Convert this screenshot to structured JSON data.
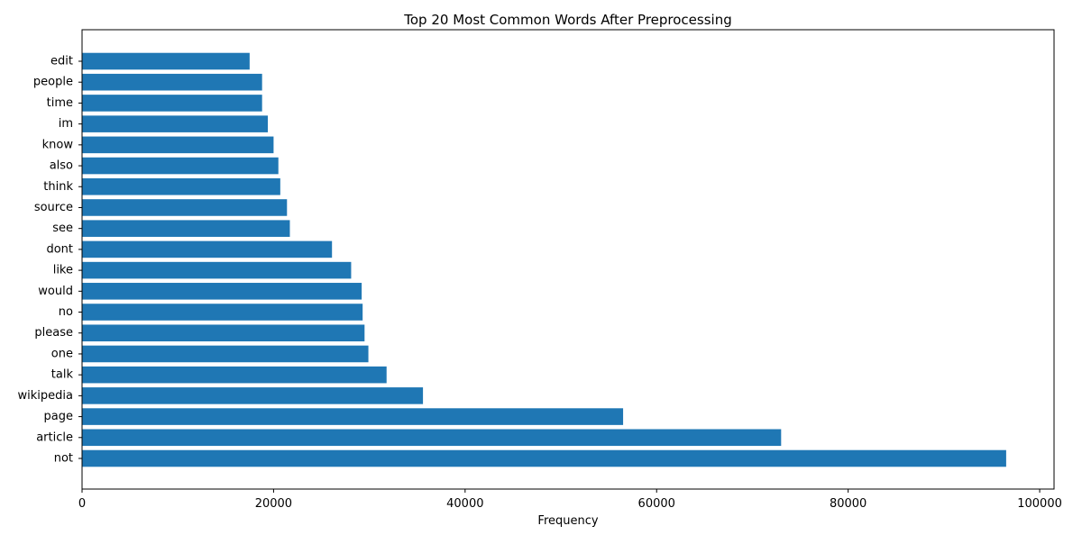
{
  "chart_data": {
    "type": "bar",
    "orientation": "horizontal",
    "title": "Top 20 Most Common Words After Preprocessing",
    "xlabel": "Frequency",
    "ylabel": "",
    "categories": [
      "not",
      "article",
      "page",
      "wikipedia",
      "talk",
      "one",
      "please",
      "no",
      "would",
      "like",
      "dont",
      "see",
      "source",
      "think",
      "also",
      "know",
      "im",
      "time",
      "people",
      "edit"
    ],
    "values": [
      96500,
      73000,
      56500,
      35600,
      31800,
      29900,
      29500,
      29300,
      29200,
      28100,
      26100,
      21700,
      21400,
      20700,
      20500,
      20000,
      19400,
      18800,
      18800,
      17500
    ],
    "xlim": [
      0,
      101500
    ],
    "xticks": [
      0,
      20000,
      40000,
      60000,
      80000,
      100000
    ],
    "xtick_labels": [
      "0",
      "20000",
      "40000",
      "60000",
      "80000",
      "100000"
    ],
    "bar_color": "#1f77b4",
    "grid": false
  }
}
